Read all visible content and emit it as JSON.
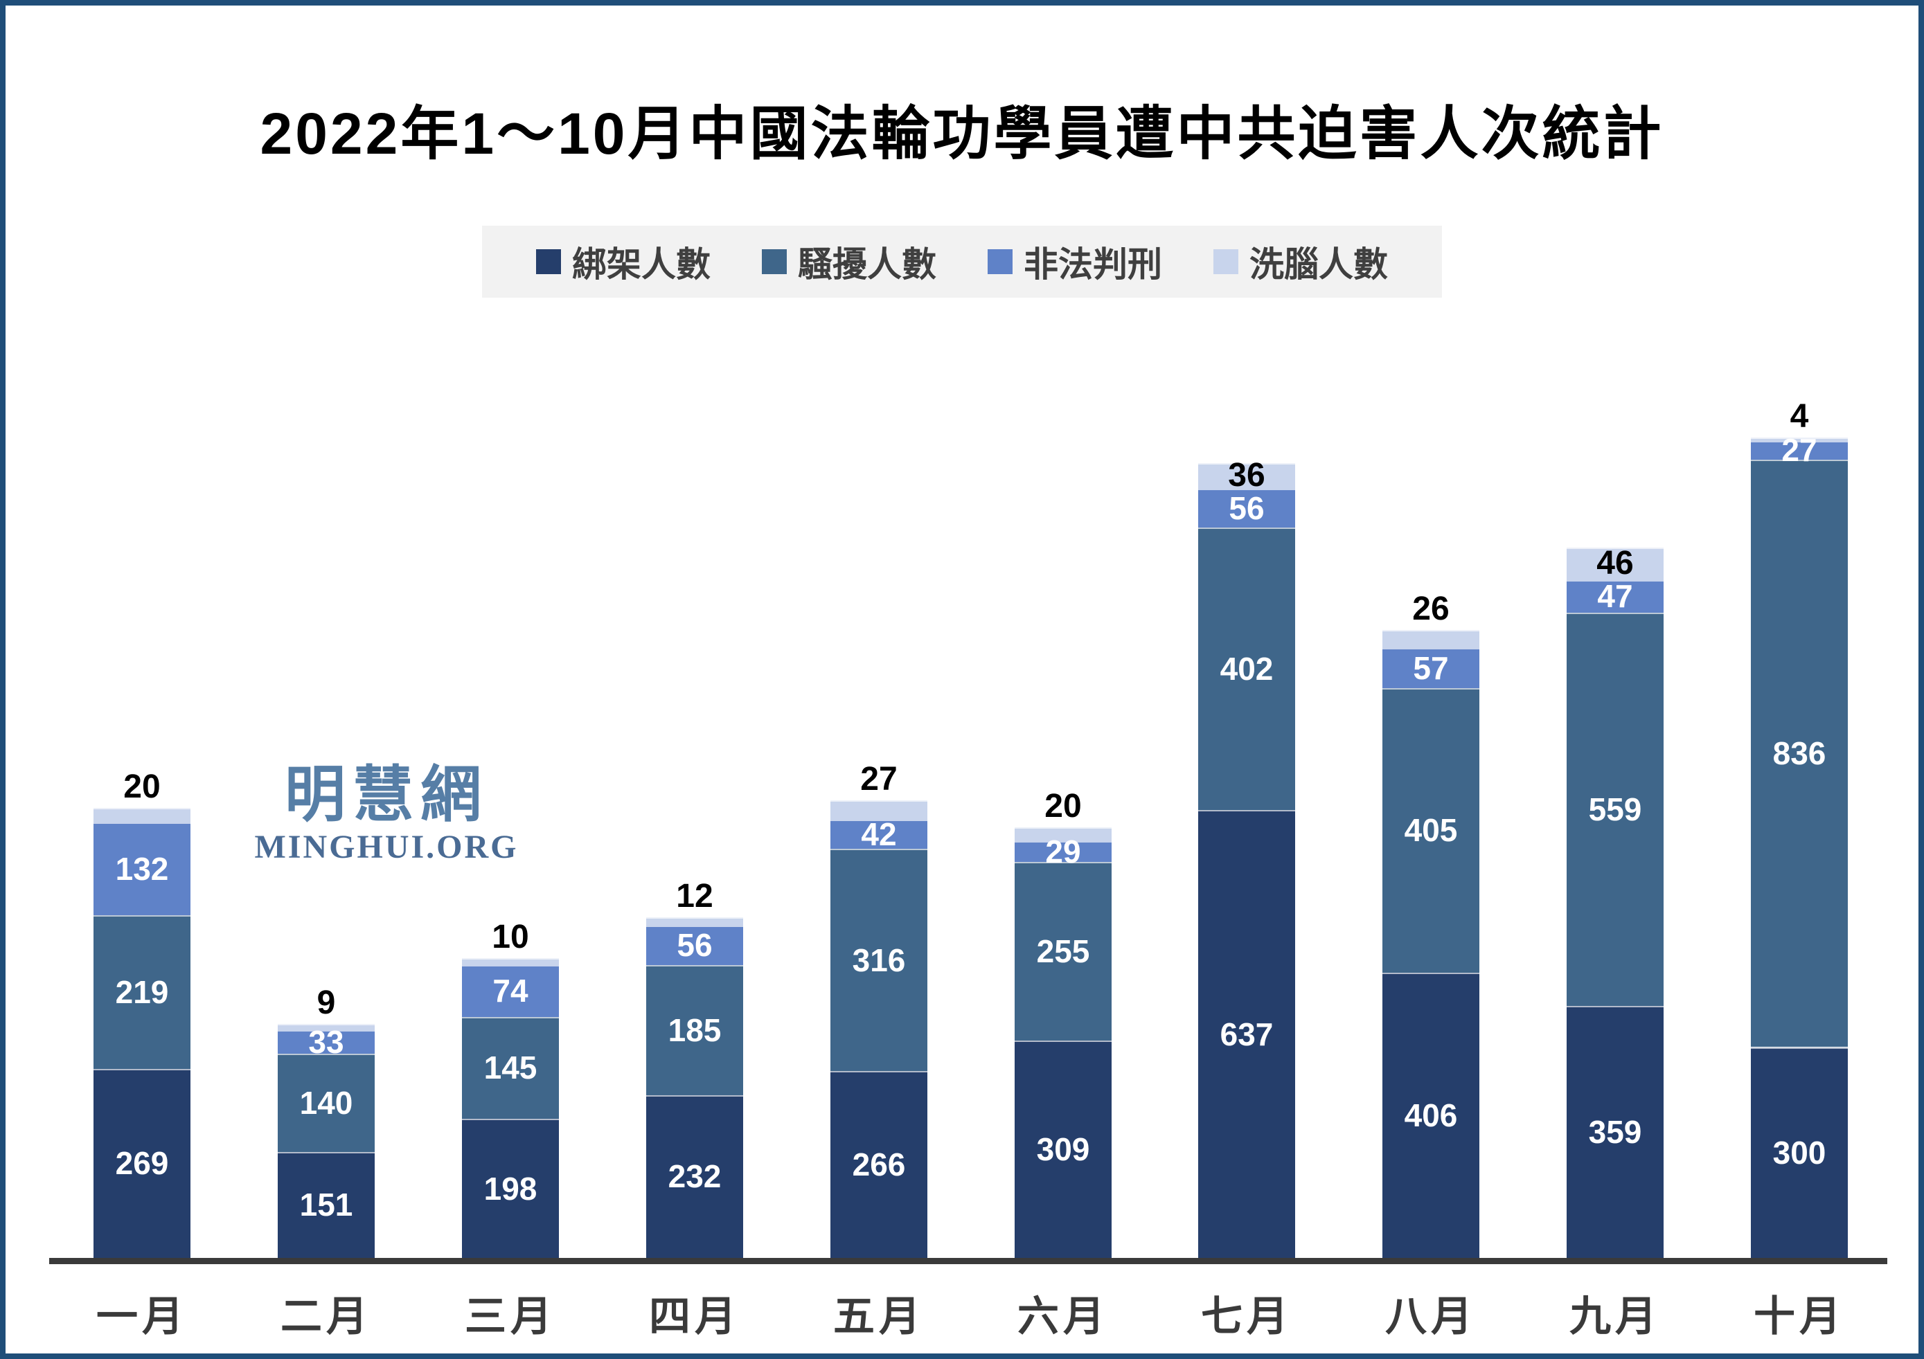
{
  "title": "2022年1～10月中國法輪功學員遭中共迫害人次統計",
  "legend": {
    "background": "#F2F2F2",
    "items": [
      {
        "label": "綁架人數",
        "color": "#253E6B"
      },
      {
        "label": "騷擾人數",
        "color": "#3F668A"
      },
      {
        "label": "非法判刑",
        "color": "#5F82C8"
      },
      {
        "label": "洗腦人數",
        "color": "#C8D4EC"
      }
    ]
  },
  "watermark": {
    "cn": "明慧網",
    "en": "MINGHUI.ORG"
  },
  "chart_data": {
    "type": "bar",
    "stacked": true,
    "title": "2022年1～10月中國法輪功學員遭中共迫害人次統計",
    "categories": [
      "一月",
      "二月",
      "三月",
      "四月",
      "五月",
      "六月",
      "七月",
      "八月",
      "九月",
      "十月"
    ],
    "series": [
      {
        "name": "綁架人數",
        "color": "#253E6B",
        "values": [
          269,
          151,
          198,
          232,
          266,
          309,
          637,
          406,
          359,
          300
        ]
      },
      {
        "name": "騷擾人數",
        "color": "#3F668A",
        "values": [
          219,
          140,
          145,
          185,
          316,
          255,
          402,
          405,
          559,
          836
        ]
      },
      {
        "name": "非法判刑",
        "color": "#5F82C8",
        "values": [
          132,
          33,
          74,
          56,
          42,
          29,
          56,
          57,
          47,
          27
        ]
      },
      {
        "name": "洗腦人數",
        "color": "#C8D4EC",
        "values": [
          20,
          9,
          10,
          12,
          27,
          20,
          36,
          26,
          46,
          4
        ]
      }
    ],
    "totals": [
      640,
      333,
      427,
      485,
      651,
      613,
      1131,
      894,
      1011,
      1167
    ],
    "xlabel": "",
    "ylabel": "",
    "ylim": [
      0,
      1200
    ],
    "grid": false,
    "legend_position": "top",
    "value_labels": {
      "inside_color": "#FFFFFF",
      "top_color": "#000000"
    },
    "axis_line_color": "#3A3A3A"
  }
}
